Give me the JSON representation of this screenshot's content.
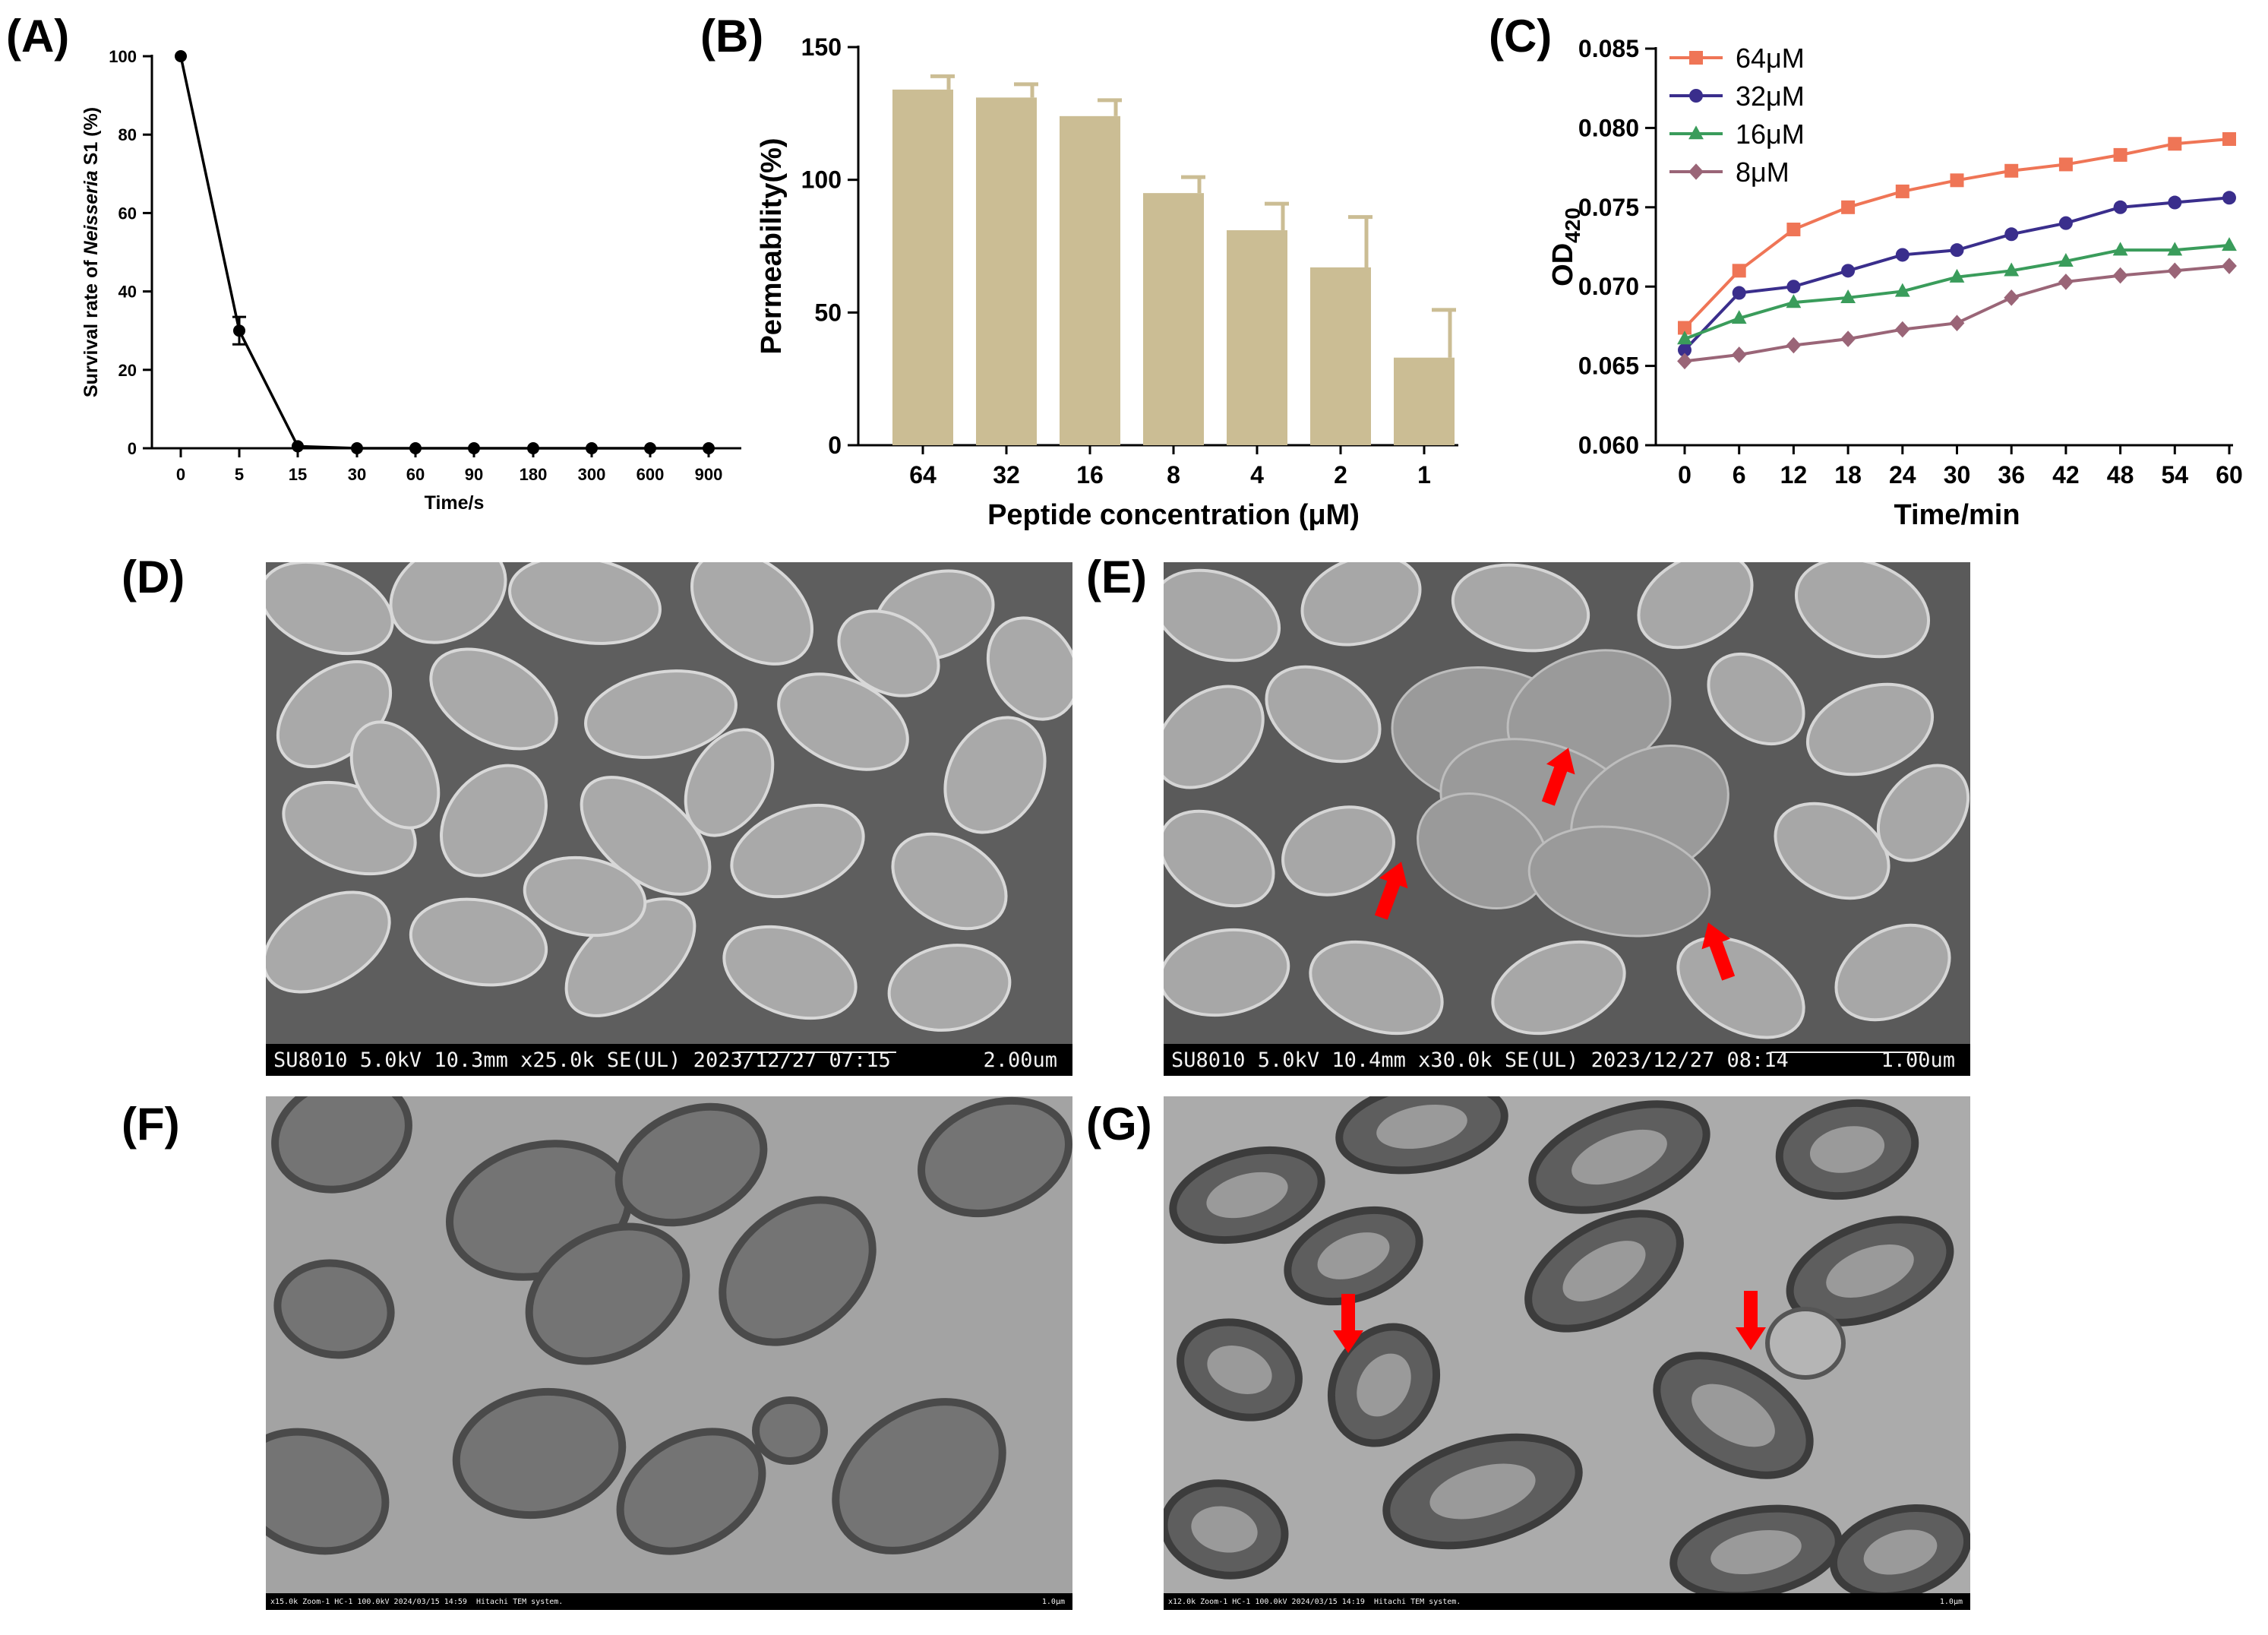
{
  "figure": {
    "panel_labels": [
      "(A)",
      "(B)",
      "(C)",
      "(D)",
      "(E)",
      "(F)",
      "(G)"
    ]
  },
  "colors": {
    "bar": "#cbbd94",
    "series_64": "#ef7556",
    "series_32": "#3a2e8c",
    "series_16": "#3a9c5b",
    "series_8": "#9a6577",
    "arrow": "#ff0000"
  },
  "chart_data": [
    {
      "id": "A",
      "type": "line",
      "x": [
        "0",
        "5",
        "15",
        "30",
        "60",
        "90",
        "180",
        "300",
        "600",
        "900"
      ],
      "values": [
        100,
        30,
        0.5,
        0,
        0,
        0,
        0,
        0,
        0,
        0
      ],
      "errors": [
        0,
        3.5,
        0,
        0,
        0,
        0,
        0,
        0,
        0,
        0
      ],
      "xlabel": "Time/s",
      "ylabel_prefix": "Survival rate of ",
      "ylabel_italic": "Neisseria",
      "ylabel_suffix": " S1 (%)",
      "ylim": [
        0,
        100
      ],
      "yticks": [
        0,
        20,
        40,
        60,
        80,
        100
      ],
      "grid": false
    },
    {
      "id": "B",
      "type": "bar",
      "categories": [
        "64",
        "32",
        "16",
        "8",
        "4",
        "2",
        "1"
      ],
      "values": [
        134,
        131,
        124,
        95,
        81,
        67,
        33
      ],
      "errors": [
        5,
        5,
        6,
        6,
        10,
        19,
        18
      ],
      "xlabel": "Peptide concentration (μM)",
      "ylabel": "Permeability(%)",
      "ylim": [
        0,
        150
      ],
      "yticks": [
        0,
        50,
        100,
        150
      ],
      "grid": false
    },
    {
      "id": "C",
      "type": "line",
      "x": [
        0,
        6,
        12,
        18,
        24,
        30,
        36,
        42,
        48,
        54,
        60
      ],
      "series": [
        {
          "name": "64μM",
          "marker": "square",
          "values": [
            0.0674,
            0.071,
            0.0736,
            0.075,
            0.076,
            0.0767,
            0.0773,
            0.0777,
            0.0783,
            0.079,
            0.0793
          ]
        },
        {
          "name": "32μM",
          "marker": "circle",
          "values": [
            0.066,
            0.0696,
            0.07,
            0.071,
            0.072,
            0.0723,
            0.0733,
            0.074,
            0.075,
            0.0753,
            0.0756
          ]
        },
        {
          "name": "16μM",
          "marker": "triangle",
          "values": [
            0.0667,
            0.068,
            0.069,
            0.0693,
            0.0697,
            0.0706,
            0.071,
            0.0716,
            0.0723,
            0.0723,
            0.0726
          ]
        },
        {
          "name": "8μM",
          "marker": "diamond",
          "values": [
            0.0653,
            0.0657,
            0.0663,
            0.0667,
            0.0673,
            0.0677,
            0.0693,
            0.0703,
            0.0707,
            0.071,
            0.0713
          ]
        }
      ],
      "xlabel": "Time/min",
      "ylabel_main": "OD",
      "ylabel_sub": "420",
      "ylim": [
        0.06,
        0.085
      ],
      "yticks": [
        "0.060",
        "0.065",
        "0.070",
        "0.075",
        "0.080",
        "0.085"
      ],
      "legend_position": "top-left",
      "grid": false
    }
  ],
  "micrographs": {
    "D": {
      "caption": "SU8010 5.0kV 10.3mm x25.0k SE(UL) 2023/12/27 07:15",
      "scale": "2.00um"
    },
    "E": {
      "caption": "SU8010 5.0kV 10.4mm x30.0k SE(UL) 2023/12/27 08:14",
      "scale": "1.00um"
    },
    "F": {
      "caption": "x15.0k Zoom-1 HC-1 100.0kV 2024/03/15 14:59",
      "caption2": "Hitachi TEM system.",
      "scale": "1.0μm"
    },
    "G": {
      "caption": "x12.0k Zoom-1 HC-1 100.0kV 2024/03/15 14:19",
      "caption2": "Hitachi TEM system.",
      "scale": "1.0μm"
    }
  }
}
